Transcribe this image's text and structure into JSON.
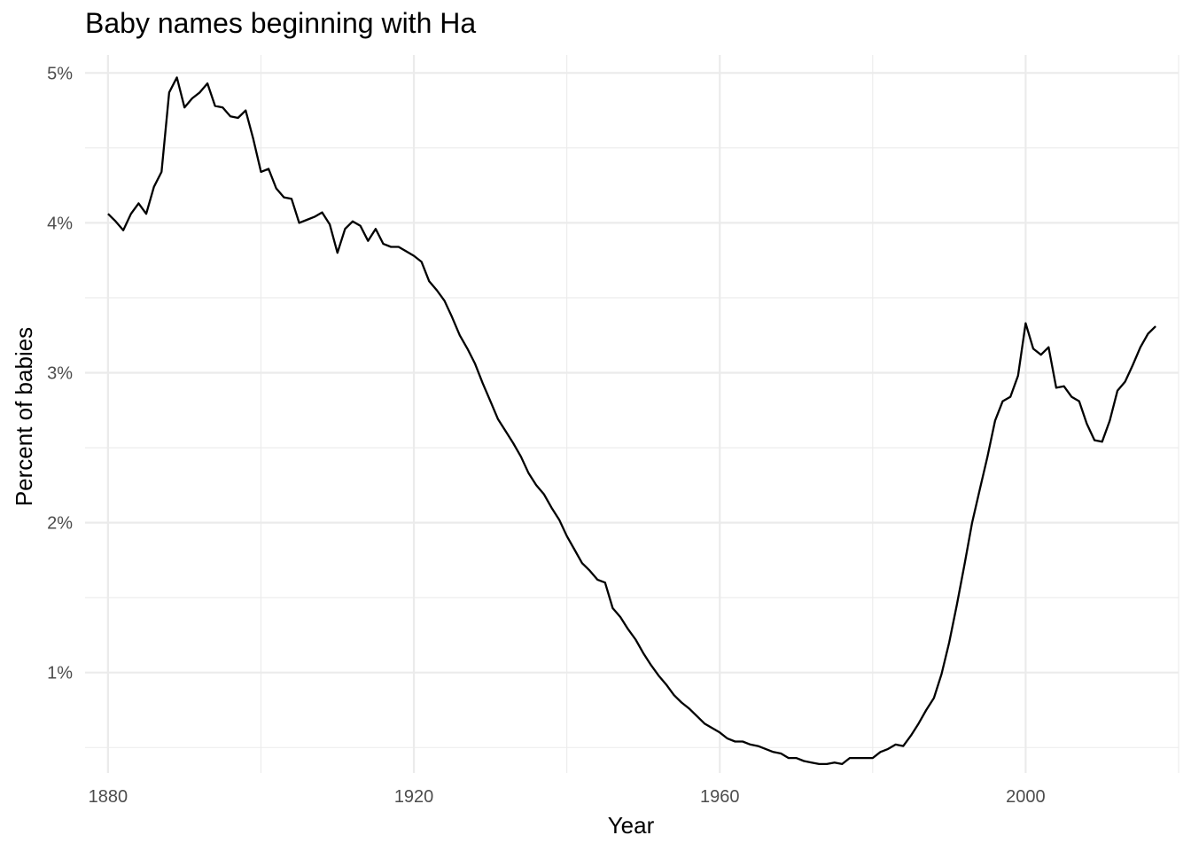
{
  "chart_data": {
    "type": "line",
    "title": "Baby names beginning with Ha",
    "xlabel": "Year",
    "ylabel": "Percent of babies",
    "xlim": [
      1877,
      2020
    ],
    "ylim": [
      0.33,
      5.12
    ],
    "x_ticks": [
      1880,
      1920,
      1960,
      2000
    ],
    "x_tick_labels": [
      "1880",
      "1920",
      "1960",
      "2000"
    ],
    "x_minor_ticks": [
      1900,
      1940,
      1980,
      2020
    ],
    "y_ticks": [
      1,
      2,
      3,
      4,
      5
    ],
    "y_tick_labels": [
      "1%",
      "2%",
      "3%",
      "4%",
      "5%"
    ],
    "y_minor_ticks": [
      0.5,
      1.5,
      2.5,
      3.5,
      4.5
    ],
    "grid": true,
    "legend": "none",
    "series": [
      {
        "x": [
          1880,
          1881,
          1882,
          1883,
          1884,
          1885,
          1886,
          1887,
          1888,
          1889,
          1890,
          1891,
          1892,
          1893,
          1894,
          1895,
          1896,
          1897,
          1898,
          1899,
          1900,
          1901,
          1902,
          1903,
          1904,
          1905,
          1906,
          1907,
          1908,
          1909,
          1910,
          1911,
          1912,
          1913,
          1914,
          1915,
          1916,
          1917,
          1918,
          1919,
          1920,
          1921,
          1922,
          1923,
          1924,
          1925,
          1926,
          1927,
          1928,
          1929,
          1930,
          1931,
          1932,
          1933,
          1934,
          1935,
          1936,
          1937,
          1938,
          1939,
          1940,
          1941,
          1942,
          1943,
          1944,
          1945,
          1946,
          1947,
          1948,
          1949,
          1950,
          1951,
          1952,
          1953,
          1954,
          1955,
          1956,
          1957,
          1958,
          1959,
          1960,
          1961,
          1962,
          1963,
          1964,
          1965,
          1966,
          1967,
          1968,
          1969,
          1970,
          1971,
          1972,
          1973,
          1974,
          1975,
          1976,
          1977,
          1978,
          1979,
          1980,
          1981,
          1982,
          1983,
          1984,
          1985,
          1986,
          1987,
          1988,
          1989,
          1990,
          1991,
          1992,
          1993,
          1994,
          1995,
          1996,
          1997,
          1998,
          1999,
          2000,
          2001,
          2002,
          2003,
          2004,
          2005,
          2006,
          2007,
          2008,
          2009,
          2010,
          2011,
          2012,
          2013,
          2014,
          2015,
          2016,
          2017
        ],
        "values": [
          4.06,
          4.01,
          3.95,
          4.06,
          4.13,
          4.06,
          4.24,
          4.34,
          4.87,
          4.97,
          4.77,
          4.83,
          4.87,
          4.93,
          4.78,
          4.77,
          4.71,
          4.7,
          4.75,
          4.56,
          4.34,
          4.36,
          4.23,
          4.17,
          4.16,
          4.0,
          4.02,
          4.04,
          4.07,
          3.99,
          3.8,
          3.96,
          4.01,
          3.98,
          3.88,
          3.96,
          3.86,
          3.84,
          3.84,
          3.81,
          3.78,
          3.74,
          3.61,
          3.55,
          3.48,
          3.37,
          3.25,
          3.16,
          3.06,
          2.93,
          2.81,
          2.69,
          2.61,
          2.53,
          2.44,
          2.33,
          2.25,
          2.19,
          2.1,
          2.02,
          1.91,
          1.82,
          1.73,
          1.68,
          1.62,
          1.6,
          1.43,
          1.37,
          1.29,
          1.22,
          1.13,
          1.05,
          0.98,
          0.92,
          0.85,
          0.8,
          0.76,
          0.71,
          0.66,
          0.63,
          0.6,
          0.56,
          0.54,
          0.54,
          0.52,
          0.51,
          0.49,
          0.47,
          0.46,
          0.43,
          0.43,
          0.41,
          0.4,
          0.39,
          0.39,
          0.4,
          0.39,
          0.43,
          0.43,
          0.43,
          0.43,
          0.47,
          0.49,
          0.52,
          0.51,
          0.58,
          0.66,
          0.75,
          0.83,
          0.99,
          1.2,
          1.45,
          1.72,
          2.0,
          2.22,
          2.44,
          2.68,
          2.81,
          2.84,
          2.98,
          3.33,
          3.16,
          3.12,
          3.17,
          2.9,
          2.91,
          2.84,
          2.81,
          2.66,
          2.55,
          2.54,
          2.68,
          2.88,
          2.94,
          3.05,
          3.17,
          3.26,
          3.31
        ]
      }
    ]
  }
}
